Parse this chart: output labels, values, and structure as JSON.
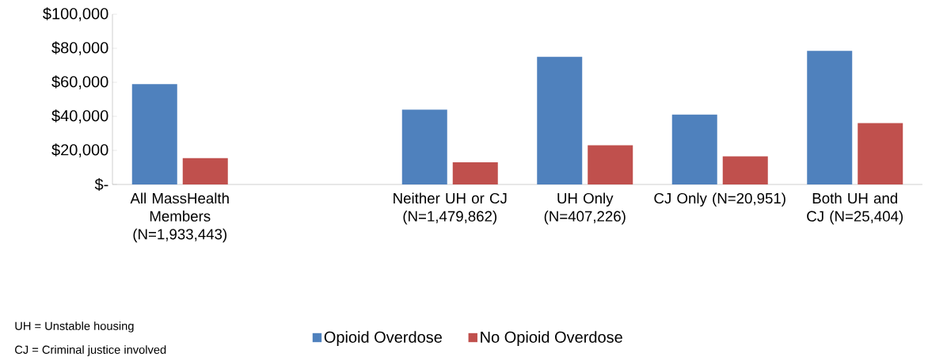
{
  "chart_data": {
    "type": "bar",
    "categories": [
      "All MassHealth Members (N=1,933,443)",
      null,
      "Neither UH or CJ (N=1,479,862)",
      "UH Only (N=407,226)",
      "CJ Only (N=20,951)",
      "Both UH and CJ (N=25,404)"
    ],
    "series": [
      {
        "name": "Opioid Overdose",
        "color": "#4f81bd",
        "values": [
          59000,
          null,
          44000,
          75000,
          41000,
          78500
        ]
      },
      {
        "name": "No Opioid Overdose",
        "color": "#c0504d",
        "values": [
          15500,
          null,
          13000,
          23000,
          16500,
          36000
        ]
      }
    ],
    "ylim": [
      0,
      100000
    ],
    "yticks": [
      {
        "value": 0,
        "label": "$-"
      },
      {
        "value": 20000,
        "label": "$20,000"
      },
      {
        "value": 40000,
        "label": "$40,000"
      },
      {
        "value": 60000,
        "label": "$60,000"
      },
      {
        "value": 80000,
        "label": "$80,000"
      },
      {
        "value": 100000,
        "label": "$100,000"
      }
    ],
    "legend": "bottom",
    "annotations": [
      "UH = Unstable housing",
      "CJ = Criminal justice involved"
    ]
  }
}
